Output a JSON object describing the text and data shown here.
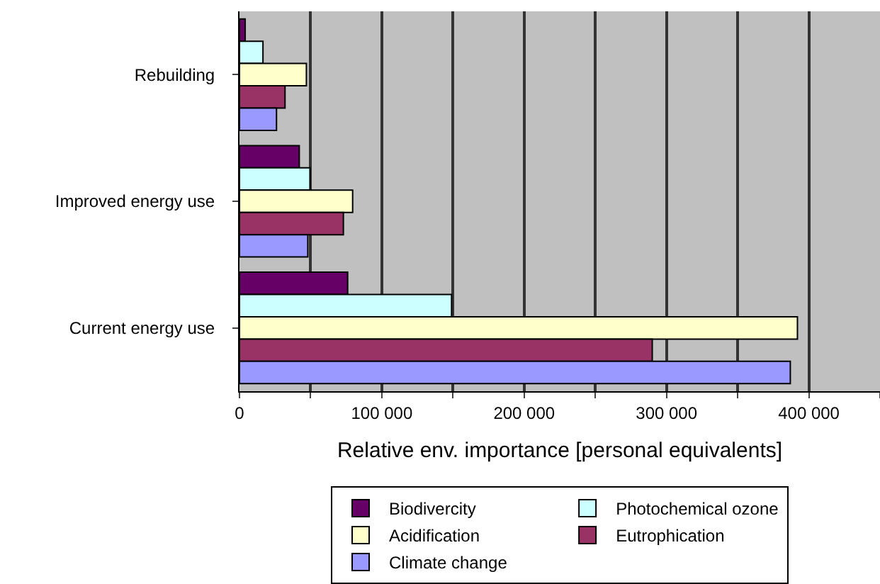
{
  "chart_data": {
    "type": "bar",
    "orientation": "horizontal",
    "xlabel": "Relative env. importance [personal equivalents]",
    "categories": [
      "Rebuilding",
      "Improved energy use",
      "Current energy use"
    ],
    "series": [
      {
        "name": "Biodivercity",
        "color": "#660066",
        "values": [
          4000,
          42000,
          76000
        ]
      },
      {
        "name": "Photochemical ozone",
        "color": "#ccffff",
        "values": [
          16500,
          49500,
          149000
        ]
      },
      {
        "name": "Acidification",
        "color": "#ffffcc",
        "values": [
          47000,
          79500,
          392000
        ]
      },
      {
        "name": "Eutrophication",
        "color": "#993366",
        "values": [
          32000,
          73000,
          290000
        ]
      },
      {
        "name": "Climate change",
        "color": "#9999ff",
        "values": [
          26000,
          48000,
          387000
        ]
      }
    ],
    "xlim": [
      0,
      450000
    ],
    "xticks": [
      {
        "value": 0,
        "label": "0"
      },
      {
        "value": 50000,
        "label": null
      },
      {
        "value": 100000,
        "label": "100 000"
      },
      {
        "value": 150000,
        "label": null
      },
      {
        "value": 200000,
        "label": "200 000"
      },
      {
        "value": 250000,
        "label": null
      },
      {
        "value": 300000,
        "label": "300 000"
      },
      {
        "value": 350000,
        "label": null
      },
      {
        "value": 400000,
        "label": "400 000"
      },
      {
        "value": 450000,
        "label": null
      }
    ],
    "grid": "x",
    "legend": "bottom"
  }
}
